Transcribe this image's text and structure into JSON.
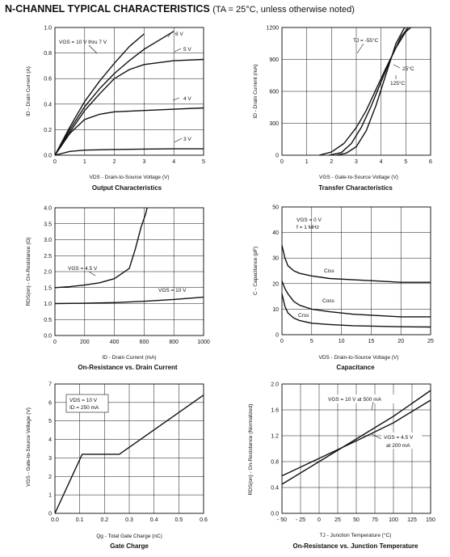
{
  "header": {
    "title": "N-CHANNEL TYPICAL CHARACTERISTICS",
    "conditions": "(TA = 25°C, unless otherwise noted)"
  },
  "chart_data": [
    {
      "id": "output",
      "type": "line",
      "title": "Output Characteristics",
      "xlabel": "VDS - Drain-to-Source Voltage (V)",
      "ylabel": "ID - Drain Current (A)",
      "xlim": [
        0,
        5
      ],
      "ylim": [
        0,
        1.0
      ],
      "xticks": [
        0,
        1,
        2,
        3,
        4,
        5
      ],
      "yticks": [
        0,
        0.2,
        0.4,
        0.6,
        0.8,
        1.0
      ],
      "xtick_labels": [
        "0",
        "1",
        "2",
        "3",
        "4",
        "5"
      ],
      "ytick_labels": [
        "0.0",
        "0.2",
        "0.4",
        "0.6",
        "0.8",
        "1.0"
      ],
      "grid": true,
      "series": [
        {
          "name": "VGS = 10 V thru 7 V",
          "x": [
            0,
            0.5,
            1,
            1.5,
            2,
            2.5,
            3
          ],
          "y": [
            0,
            0.22,
            0.42,
            0.58,
            0.72,
            0.85,
            0.95
          ]
        },
        {
          "name": "6 V",
          "x": [
            0,
            0.5,
            1,
            1.5,
            2,
            2.5,
            3,
            3.5,
            4
          ],
          "y": [
            0,
            0.2,
            0.38,
            0.52,
            0.64,
            0.74,
            0.83,
            0.9,
            0.97
          ]
        },
        {
          "name": "5 V",
          "x": [
            0,
            0.5,
            1,
            1.5,
            2,
            2.5,
            3,
            4,
            5
          ],
          "y": [
            0,
            0.18,
            0.35,
            0.48,
            0.6,
            0.67,
            0.71,
            0.74,
            0.75
          ]
        },
        {
          "name": "4 V",
          "x": [
            0,
            0.5,
            1,
            1.5,
            2,
            3,
            4,
            5
          ],
          "y": [
            0,
            0.17,
            0.28,
            0.32,
            0.34,
            0.35,
            0.36,
            0.37
          ]
        },
        {
          "name": "3 V",
          "x": [
            0,
            0.5,
            1,
            2,
            3,
            4,
            5
          ],
          "y": [
            0,
            0.03,
            0.04,
            0.045,
            0.048,
            0.05,
            0.05
          ]
        }
      ],
      "annotations": [
        "VGS = 10 V thru 7 V",
        "6 V",
        "5 V",
        "4 V",
        "3 V"
      ]
    },
    {
      "id": "transfer",
      "type": "line",
      "title": "Transfer Characteristics",
      "xlabel": "VGS - Gate-to-Source Voltage (V)",
      "ylabel": "ID - Drain Current (mA)",
      "xlim": [
        0,
        6
      ],
      "ylim": [
        0,
        1200
      ],
      "xticks": [
        0,
        1,
        2,
        3,
        4,
        5,
        6
      ],
      "yticks": [
        0,
        300,
        600,
        900,
        1200
      ],
      "xtick_labels": [
        "0",
        "1",
        "2",
        "3",
        "4",
        "5",
        "6"
      ],
      "ytick_labels": [
        "0",
        "300",
        "600",
        "900",
        "1200"
      ],
      "grid": true,
      "series": [
        {
          "name": "TJ = -55°C",
          "x": [
            2.2,
            2.6,
            3.0,
            3.4,
            3.8,
            4.2,
            4.6,
            4.95
          ],
          "y": [
            0,
            20,
            80,
            230,
            470,
            760,
            1050,
            1200
          ]
        },
        {
          "name": "25°C",
          "x": [
            1.9,
            2.4,
            2.8,
            3.2,
            3.6,
            4.0,
            4.4,
            4.8,
            5.1
          ],
          "y": [
            0,
            25,
            110,
            260,
            460,
            690,
            910,
            1110,
            1200
          ]
        },
        {
          "name": "125°C",
          "x": [
            1.5,
            2.0,
            2.5,
            3.0,
            3.4,
            3.8,
            4.2,
            4.6,
            5.0,
            5.2
          ],
          "y": [
            0,
            30,
            110,
            260,
            420,
            620,
            820,
            1010,
            1160,
            1200
          ]
        }
      ],
      "annotations": [
        "TJ = -55°C",
        "25°C",
        "125°C"
      ]
    },
    {
      "id": "onres_id",
      "type": "line",
      "title": "On-Resistance vs. Drain Current",
      "xlabel": "ID - Drain Current (mA)",
      "ylabel": "RDS(on) - On-Resistance (Ω)",
      "xlim": [
        0,
        1000
      ],
      "ylim": [
        0,
        4.0
      ],
      "xticks": [
        0,
        200,
        400,
        600,
        800,
        1000
      ],
      "yticks": [
        0,
        0.5,
        1.0,
        1.5,
        2.0,
        2.5,
        3.0,
        3.5,
        4.0
      ],
      "xtick_labels": [
        "0",
        "200",
        "400",
        "600",
        "800",
        "1000"
      ],
      "ytick_labels": [
        "0.0",
        "0.5",
        "1.0",
        "1.5",
        "2.0",
        "2.5",
        "3.0",
        "3.5",
        "4.0"
      ],
      "grid": true,
      "series": [
        {
          "name": "VGS = 4.5 V",
          "x": [
            0,
            100,
            200,
            300,
            400,
            500,
            540,
            580,
            610,
            620
          ],
          "y": [
            1.5,
            1.53,
            1.58,
            1.65,
            1.78,
            2.1,
            2.7,
            3.4,
            3.8,
            4.0
          ]
        },
        {
          "name": "VGS = 10 V",
          "x": [
            0,
            200,
            400,
            600,
            800,
            1000
          ],
          "y": [
            1.0,
            1.01,
            1.03,
            1.07,
            1.13,
            1.2
          ]
        }
      ],
      "annotations": [
        "VGS = 4.5 V",
        "VGS = 10 V"
      ]
    },
    {
      "id": "capacitance",
      "type": "line",
      "title": "Capacitance",
      "xlabel": "VDS - Drain-to-Source Voltage (V)",
      "ylabel": "C - Capacitance (pF)",
      "xlim": [
        0,
        25
      ],
      "ylim": [
        0,
        50
      ],
      "xticks": [
        0,
        5,
        10,
        15,
        20,
        25
      ],
      "yticks": [
        0,
        10,
        20,
        30,
        40,
        50
      ],
      "xtick_labels": [
        "0",
        "5",
        "10",
        "15",
        "20",
        "25"
      ],
      "ytick_labels": [
        "0",
        "10",
        "20",
        "30",
        "40",
        "50"
      ],
      "grid": true,
      "series": [
        {
          "name": "Ciss",
          "x": [
            0,
            0.5,
            1,
            2,
            3,
            5,
            8,
            12,
            16,
            20,
            25
          ],
          "y": [
            35,
            30,
            27,
            25,
            24,
            23,
            22,
            21.5,
            21,
            20.5,
            20.5
          ]
        },
        {
          "name": "Coss",
          "x": [
            0,
            0.5,
            1,
            2,
            3,
            5,
            8,
            12,
            16,
            20,
            25
          ],
          "y": [
            21,
            18,
            16,
            13,
            11.5,
            10,
            9,
            8,
            7.5,
            7,
            7
          ]
        },
        {
          "name": "Crss",
          "x": [
            0,
            0.5,
            1,
            2,
            3,
            5,
            8,
            12,
            16,
            20,
            25
          ],
          "y": [
            16,
            11,
            8.5,
            6.5,
            5.5,
            4.5,
            4,
            3.5,
            3.3,
            3.1,
            3
          ]
        }
      ],
      "annotations": [
        "VGS = 0 V",
        "f = 1 MHz",
        "Ciss",
        "Coss",
        "Crss"
      ]
    },
    {
      "id": "gate_charge",
      "type": "line",
      "title": "Gate Charge",
      "xlabel": "Qg - Total Gate Charge (nC)",
      "ylabel": "VGS - Gate-to-Source Voltage (V)",
      "xlim": [
        0,
        0.6
      ],
      "ylim": [
        0,
        7
      ],
      "xticks": [
        0,
        0.1,
        0.2,
        0.3,
        0.4,
        0.5,
        0.6
      ],
      "yticks": [
        0,
        1,
        2,
        3,
        4,
        5,
        6,
        7
      ],
      "xtick_labels": [
        "0.0",
        "0.1",
        "0.2",
        "0.3",
        "0.4",
        "0.5",
        "0.6"
      ],
      "ytick_labels": [
        "0",
        "1",
        "2",
        "3",
        "4",
        "5",
        "6",
        "7"
      ],
      "grid": true,
      "series": [
        {
          "name": "VGS",
          "x": [
            0,
            0.11,
            0.26,
            0.6
          ],
          "y": [
            0,
            3.2,
            3.2,
            6.4
          ]
        }
      ],
      "annotations": [
        "VDS = 10 V",
        "ID = 250 mA"
      ]
    },
    {
      "id": "onres_temp",
      "type": "line",
      "title": "On-Resistance vs. Junction Temperature",
      "xlabel": "TJ - Junction Temperature (°C)",
      "ylabel": "RDS(on) - On-Resistance (Normalized)",
      "xlim": [
        -50,
        150
      ],
      "ylim": [
        0,
        2.0
      ],
      "xticks": [
        -50,
        -25,
        0,
        25,
        50,
        75,
        100,
        125,
        150
      ],
      "yticks": [
        0,
        0.4,
        0.8,
        1.2,
        1.6,
        2.0
      ],
      "xtick_labels": [
        "- 50",
        "- 25",
        "0",
        "25",
        "50",
        "75",
        "100",
        "125",
        "150"
      ],
      "ytick_labels": [
        "0.0",
        "0.4",
        "0.8",
        "1.2",
        "1.6",
        "2.0"
      ],
      "grid": true,
      "series": [
        {
          "name": "VGS = 10 V at 500 mA",
          "x": [
            -50,
            0,
            50,
            100,
            150
          ],
          "y": [
            0.45,
            0.8,
            1.15,
            1.5,
            1.9
          ]
        },
        {
          "name": "VGS = 4.5 V at 200 mA",
          "x": [
            -50,
            0,
            50,
            100,
            150
          ],
          "y": [
            0.58,
            0.85,
            1.12,
            1.4,
            1.75
          ]
        }
      ],
      "annotations": [
        "VGS = 10 V at 500 mA",
        "VGS = 4.5 V",
        "at 200 mA"
      ]
    }
  ]
}
